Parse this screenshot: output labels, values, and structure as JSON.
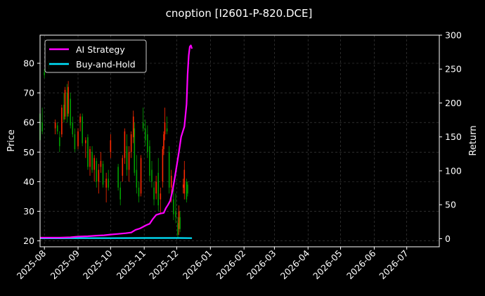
{
  "chart_data": {
    "type": "line",
    "title": "cnoption [I2601-P-820.DCE]",
    "ylabel_left": "Price",
    "ylabel_right": "Return",
    "ylim_left": [
      18,
      89.5
    ],
    "yticks_left": [
      20,
      30,
      40,
      50,
      60,
      70,
      80
    ],
    "ylim_right": [
      -12,
      300
    ],
    "yticks_right": [
      0,
      50,
      100,
      150,
      200,
      250,
      300
    ],
    "xlim": [
      "2025-07-28",
      "2026-07-31"
    ],
    "xticks": [
      "2025-08",
      "2025-09",
      "2025-10",
      "2025-11",
      "2025-12",
      "2026-01",
      "2026-02",
      "2026-03",
      "2026-04",
      "2026-05",
      "2026-06",
      "2026-07"
    ],
    "xtick_dates": [
      "2025-08-01",
      "2025-09-01",
      "2025-10-01",
      "2025-11-01",
      "2025-12-01",
      "2026-01-01",
      "2026-02-01",
      "2026-03-01",
      "2026-04-01",
      "2026-05-01",
      "2026-06-01",
      "2026-07-01"
    ],
    "grid": true,
    "legend_position": "top-left",
    "series": [
      {
        "name": "AI Strategy",
        "color": "#ff00ff",
        "points": [
          [
            "2025-07-28",
            1.5
          ],
          [
            "2025-08-15",
            1.5
          ],
          [
            "2025-08-25",
            2
          ],
          [
            "2025-09-01",
            3
          ],
          [
            "2025-09-10",
            3.5
          ],
          [
            "2025-09-18",
            4.5
          ],
          [
            "2025-09-25",
            5
          ],
          [
            "2025-10-01",
            6
          ],
          [
            "2025-10-08",
            7
          ],
          [
            "2025-10-15",
            8
          ],
          [
            "2025-10-20",
            9
          ],
          [
            "2025-10-24",
            13
          ],
          [
            "2025-10-28",
            15
          ],
          [
            "2025-11-03",
            20
          ],
          [
            "2025-11-06",
            22
          ],
          [
            "2025-11-09",
            29
          ],
          [
            "2025-11-12",
            35
          ],
          [
            "2025-11-16",
            37
          ],
          [
            "2025-11-19",
            38
          ],
          [
            "2025-11-21",
            45
          ],
          [
            "2025-11-23",
            50
          ],
          [
            "2025-11-25",
            56
          ],
          [
            "2025-11-27",
            70
          ],
          [
            "2025-11-29",
            88
          ],
          [
            "2025-12-01",
            108
          ],
          [
            "2025-12-03",
            128
          ],
          [
            "2025-12-05",
            150
          ],
          [
            "2025-12-07",
            160
          ],
          [
            "2025-12-08",
            165
          ],
          [
            "2025-12-10",
            198
          ],
          [
            "2025-12-11",
            242
          ],
          [
            "2025-12-12",
            270
          ],
          [
            "2025-12-13",
            283
          ],
          [
            "2025-12-14",
            285
          ],
          [
            "2025-12-15",
            280
          ]
        ]
      },
      {
        "name": "Buy-and-Hold",
        "color": "#00e5ff",
        "points": [
          [
            "2025-07-28",
            0.5
          ],
          [
            "2025-08-15",
            0.5
          ],
          [
            "2025-09-01",
            0.8
          ],
          [
            "2025-10-01",
            0.8
          ],
          [
            "2025-11-01",
            1.0
          ],
          [
            "2025-12-01",
            1.0
          ],
          [
            "2025-12-15",
            0.8
          ]
        ]
      }
    ],
    "candles": [
      [
        "2025-07-28",
        63,
        64.5,
        53,
        54
      ],
      [
        "2025-07-30",
        60,
        65,
        56,
        57
      ],
      [
        "2025-08-01",
        77,
        78,
        75,
        76
      ],
      [
        "2025-08-05",
        80,
        81,
        78,
        79
      ],
      [
        "2025-08-11",
        58,
        61,
        56,
        60
      ],
      [
        "2025-08-13",
        59,
        60,
        56,
        57
      ],
      [
        "2025-08-15",
        55,
        57,
        50,
        52
      ],
      [
        "2025-08-17",
        56,
        66,
        55,
        65
      ],
      [
        "2025-08-19",
        66,
        70,
        60,
        61
      ],
      [
        "2025-08-20",
        62,
        72,
        61,
        71
      ],
      [
        "2025-08-22",
        70,
        73,
        60,
        62
      ],
      [
        "2025-08-23",
        63,
        74,
        62,
        72
      ],
      [
        "2025-08-25",
        68,
        70,
        58,
        59
      ],
      [
        "2025-08-27",
        60,
        62,
        55,
        56
      ],
      [
        "2025-08-29",
        56,
        58,
        50,
        51
      ],
      [
        "2025-09-01",
        52,
        58,
        51,
        57
      ],
      [
        "2025-09-03",
        60,
        63,
        57,
        62
      ],
      [
        "2025-09-05",
        62,
        63,
        52,
        53
      ],
      [
        "2025-09-08",
        53,
        55,
        48,
        54
      ],
      [
        "2025-09-10",
        55,
        56,
        44,
        45
      ],
      [
        "2025-09-12",
        45,
        52,
        42,
        51
      ],
      [
        "2025-09-14",
        50,
        52,
        43,
        44
      ],
      [
        "2025-09-16",
        44,
        49,
        40,
        48
      ],
      [
        "2025-09-18",
        47,
        48,
        38,
        40
      ],
      [
        "2025-09-20",
        40,
        46,
        36,
        44
      ],
      [
        "2025-09-22",
        45,
        50,
        43,
        47
      ],
      [
        "2025-09-24",
        46,
        47,
        38,
        39
      ],
      [
        "2025-09-27",
        38,
        43,
        33,
        41
      ],
      [
        "2025-09-29",
        41,
        44,
        37,
        38
      ],
      [
        "2025-10-01",
        50,
        56,
        48,
        54
      ],
      [
        "2025-10-08",
        45,
        46,
        37,
        38
      ],
      [
        "2025-10-10",
        38,
        40,
        32,
        34
      ],
      [
        "2025-10-12",
        42,
        49,
        40,
        48
      ],
      [
        "2025-10-14",
        48,
        58,
        46,
        57
      ],
      [
        "2025-10-16",
        52,
        56,
        42,
        44
      ],
      [
        "2025-10-18",
        44,
        52,
        40,
        50
      ],
      [
        "2025-10-20",
        50,
        57,
        48,
        56
      ],
      [
        "2025-10-22",
        55,
        64,
        53,
        62
      ],
      [
        "2025-10-23",
        58,
        60,
        42,
        43
      ],
      [
        "2025-10-25",
        44,
        49,
        36,
        38
      ],
      [
        "2025-10-27",
        38,
        40,
        33,
        35
      ],
      [
        "2025-10-29",
        36,
        49,
        35,
        48
      ],
      [
        "2025-10-31",
        60,
        65,
        57,
        58
      ],
      [
        "2025-11-02",
        58,
        61,
        52,
        54
      ],
      [
        "2025-11-04",
        56,
        59,
        48,
        50
      ],
      [
        "2025-11-06",
        52,
        54,
        40,
        42
      ],
      [
        "2025-11-08",
        44,
        47,
        38,
        40
      ],
      [
        "2025-11-10",
        38,
        40,
        32,
        34
      ],
      [
        "2025-11-12",
        36,
        42,
        34,
        40
      ],
      [
        "2025-11-14",
        43,
        48,
        30,
        32
      ],
      [
        "2025-11-16",
        34,
        38,
        29,
        36
      ],
      [
        "2025-11-18",
        40,
        52,
        38,
        51
      ],
      [
        "2025-11-19",
        51,
        57,
        49,
        56
      ],
      [
        "2025-11-20",
        56,
        65,
        54,
        60
      ],
      [
        "2025-11-22",
        58,
        62,
        56,
        57
      ],
      [
        "2025-11-24",
        50,
        52,
        36,
        38
      ],
      [
        "2025-11-26",
        38,
        44,
        33,
        42
      ],
      [
        "2025-11-28",
        34,
        38,
        27,
        29
      ],
      [
        "2025-11-30",
        30,
        36,
        26,
        28
      ],
      [
        "2025-12-02",
        26,
        28,
        21,
        22
      ],
      [
        "2025-12-03",
        24,
        32,
        22,
        30
      ],
      [
        "2025-12-04",
        28,
        30,
        23,
        24
      ],
      [
        "2025-12-07",
        38,
        41,
        36,
        39
      ],
      [
        "2025-12-08",
        36,
        47,
        34,
        44
      ],
      [
        "2025-12-10",
        40,
        41,
        33,
        34
      ],
      [
        "2025-12-11",
        39,
        40,
        35,
        36
      ]
    ]
  }
}
